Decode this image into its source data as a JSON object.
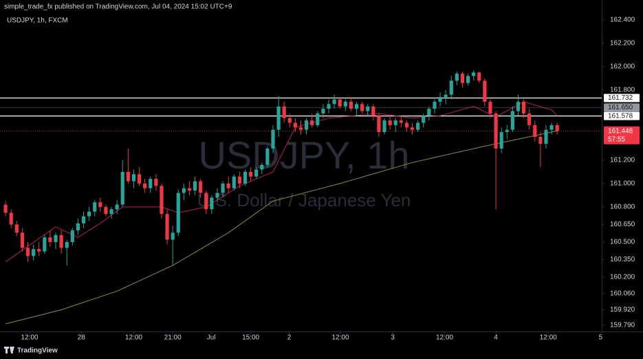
{
  "header": {
    "publisher": "simple_trade_fx published on TradingView.com, Jul 04, 2024 15:02 UTC+9",
    "footer": "TradingView"
  },
  "chart_data": {
    "type": "candlestick",
    "title": "USDJPY, 1h, FXCM",
    "watermark": "USDJPY, 1h",
    "watermark_subtitle": "U.S. Dollar / Japanese Yen",
    "up_color": "#26a69a",
    "down_color": "#f23645",
    "ylim": [
      159.735,
      162.57
    ],
    "xlim": [
      -1,
      107
    ],
    "yticks": [
      {
        "value": 162.4,
        "label": "162.400"
      },
      {
        "value": 162.2,
        "label": "162.200"
      },
      {
        "value": 162.0,
        "label": "162.000"
      },
      {
        "value": 161.8,
        "label": "161.800"
      },
      {
        "value": 161.2,
        "label": "161.200"
      },
      {
        "value": 161.0,
        "label": "161.000"
      },
      {
        "value": 160.8,
        "label": "160.800"
      },
      {
        "value": 160.65,
        "label": "160.650"
      },
      {
        "value": 160.5,
        "label": "160.500"
      },
      {
        "value": 160.35,
        "label": "160.350"
      },
      {
        "value": 160.2,
        "label": "160.200"
      },
      {
        "value": 160.06,
        "label": "160.060"
      },
      {
        "value": 159.92,
        "label": "159.920"
      },
      {
        "value": 159.79,
        "label": "159.790"
      }
    ],
    "xticks": [
      {
        "value": 4.3,
        "label": "12:00"
      },
      {
        "value": 13.6,
        "label": "28"
      },
      {
        "value": 23,
        "label": "12:00"
      },
      {
        "value": 30,
        "label": "21:00"
      },
      {
        "value": 36.9,
        "label": "Jul"
      },
      {
        "value": 44,
        "label": "15:00"
      },
      {
        "value": 50.9,
        "label": "2"
      },
      {
        "value": 60.1,
        "label": "12:00"
      },
      {
        "value": 69.5,
        "label": "3"
      },
      {
        "value": 78.8,
        "label": "12:00"
      },
      {
        "value": 88,
        "label": "4"
      },
      {
        "value": 97.4,
        "label": "12:00"
      },
      {
        "value": 106.8,
        "label": "5"
      }
    ],
    "levels": [
      {
        "value": 161.732,
        "label": "161.732",
        "color": "#ffffff"
      },
      {
        "value": 161.65,
        "label": "161.650",
        "color": "#9598a1"
      },
      {
        "value": 161.578,
        "label": "161.578",
        "color": "#ffffff"
      }
    ],
    "last_price": {
      "value": 161.448,
      "label": "161.448",
      "countdown": "57:55"
    },
    "moving_averages": [
      {
        "color": "#c2185b",
        "x": [
          0,
          9,
          13,
          17,
          21,
          28,
          31,
          36,
          42,
          48,
          52,
          58,
          67,
          73,
          78,
          84,
          88,
          93,
          98,
          99
        ],
        "values": [
          160.33,
          160.63,
          160.54,
          160.66,
          160.8,
          160.8,
          160.75,
          160.8,
          160.98,
          161.1,
          161.48,
          161.56,
          161.6,
          161.56,
          161.58,
          161.66,
          161.57,
          161.7,
          161.63,
          161.58
        ]
      },
      {
        "color": "#8d8d3a",
        "x": [
          0,
          10,
          20,
          30,
          40,
          48,
          60,
          73,
          86,
          99
        ],
        "values": [
          159.8,
          159.92,
          160.08,
          160.3,
          160.58,
          160.85,
          161.0,
          161.18,
          161.32,
          161.45
        ]
      }
    ],
    "candles": [
      [
        160.82,
        160.85,
        160.72,
        160.75
      ],
      [
        160.75,
        160.78,
        160.62,
        160.65
      ],
      [
        160.65,
        160.68,
        160.55,
        160.58
      ],
      [
        160.58,
        160.62,
        160.42,
        160.45
      ],
      [
        160.45,
        160.5,
        160.33,
        160.38
      ],
      [
        160.38,
        160.48,
        160.34,
        160.44
      ],
      [
        160.44,
        160.5,
        160.38,
        160.42
      ],
      [
        160.42,
        160.56,
        160.4,
        160.54
      ],
      [
        160.54,
        160.6,
        160.46,
        160.5
      ],
      [
        160.5,
        160.58,
        160.44,
        160.56
      ],
      [
        160.56,
        160.6,
        160.4,
        160.45
      ],
      [
        160.45,
        160.52,
        160.3,
        160.5
      ],
      [
        160.5,
        160.62,
        160.47,
        160.6
      ],
      [
        160.6,
        160.7,
        160.56,
        160.66
      ],
      [
        160.66,
        160.76,
        160.62,
        160.72
      ],
      [
        160.72,
        160.8,
        160.68,
        160.76
      ],
      [
        160.76,
        160.86,
        160.72,
        160.84
      ],
      [
        160.84,
        160.88,
        160.76,
        160.8
      ],
      [
        160.8,
        160.82,
        160.72,
        160.74
      ],
      [
        160.74,
        160.8,
        160.7,
        160.78
      ],
      [
        160.78,
        160.86,
        160.74,
        160.82
      ],
      [
        160.82,
        161.2,
        160.8,
        161.1
      ],
      [
        161.1,
        161.3,
        161.0,
        161.02
      ],
      [
        161.02,
        161.12,
        160.96,
        161.08
      ],
      [
        161.08,
        161.14,
        160.98,
        161.0
      ],
      [
        161.0,
        161.04,
        160.92,
        160.96
      ],
      [
        160.96,
        161.06,
        160.92,
        161.04
      ],
      [
        161.04,
        161.08,
        160.94,
        160.98
      ],
      [
        160.98,
        161.0,
        160.7,
        160.74
      ],
      [
        160.74,
        160.78,
        160.48,
        160.52
      ],
      [
        160.52,
        160.64,
        160.3,
        160.58
      ],
      [
        160.58,
        160.95,
        160.55,
        160.92
      ],
      [
        160.92,
        161.0,
        160.86,
        160.96
      ],
      [
        160.96,
        161.02,
        160.9,
        160.94
      ],
      [
        160.94,
        161.06,
        160.9,
        161.02
      ],
      [
        161.02,
        161.04,
        160.88,
        160.92
      ],
      [
        160.92,
        160.94,
        160.74,
        160.78
      ],
      [
        160.78,
        160.9,
        160.74,
        160.88
      ],
      [
        160.88,
        160.96,
        160.84,
        160.92
      ],
      [
        160.92,
        161.02,
        160.88,
        161.0
      ],
      [
        161.0,
        161.06,
        160.92,
        160.96
      ],
      [
        160.96,
        161.08,
        160.94,
        161.06
      ],
      [
        161.06,
        161.1,
        160.96,
        161.0
      ],
      [
        161.0,
        161.12,
        160.98,
        161.1
      ],
      [
        161.1,
        161.14,
        161.02,
        161.06
      ],
      [
        161.06,
        161.14,
        161.04,
        161.12
      ],
      [
        161.12,
        161.18,
        161.08,
        161.16
      ],
      [
        161.16,
        161.32,
        161.14,
        161.3
      ],
      [
        161.3,
        161.5,
        161.26,
        161.46
      ],
      [
        161.46,
        161.75,
        161.4,
        161.66
      ],
      [
        161.66,
        161.7,
        161.52,
        161.56
      ],
      [
        161.56,
        161.6,
        161.48,
        161.52
      ],
      [
        161.52,
        161.56,
        161.44,
        161.48
      ],
      [
        161.48,
        161.54,
        161.42,
        161.46
      ],
      [
        161.46,
        161.56,
        161.42,
        161.54
      ],
      [
        161.54,
        161.6,
        161.48,
        161.5
      ],
      [
        161.5,
        161.62,
        161.48,
        161.6
      ],
      [
        161.6,
        161.68,
        161.56,
        161.64
      ],
      [
        161.64,
        161.72,
        161.6,
        161.68
      ],
      [
        161.68,
        161.76,
        161.64,
        161.72
      ],
      [
        161.72,
        161.74,
        161.64,
        161.66
      ],
      [
        161.66,
        161.72,
        161.62,
        161.7
      ],
      [
        161.7,
        161.74,
        161.62,
        161.64
      ],
      [
        161.64,
        161.7,
        161.58,
        161.68
      ],
      [
        161.68,
        161.7,
        161.6,
        161.62
      ],
      [
        161.62,
        161.68,
        161.58,
        161.66
      ],
      [
        161.66,
        161.68,
        161.54,
        161.58
      ],
      [
        161.58,
        161.6,
        161.4,
        161.44
      ],
      [
        161.44,
        161.56,
        161.42,
        161.54
      ],
      [
        161.54,
        161.58,
        161.46,
        161.5
      ],
      [
        161.5,
        161.56,
        161.44,
        161.54
      ],
      [
        161.54,
        161.58,
        161.48,
        161.52
      ],
      [
        161.52,
        161.54,
        161.44,
        161.48
      ],
      [
        161.48,
        161.52,
        161.42,
        161.46
      ],
      [
        161.46,
        161.54,
        161.44,
        161.52
      ],
      [
        161.52,
        161.6,
        161.48,
        161.58
      ],
      [
        161.58,
        161.66,
        161.54,
        161.64
      ],
      [
        161.64,
        161.72,
        161.6,
        161.7
      ],
      [
        161.7,
        161.78,
        161.66,
        161.74
      ],
      [
        161.74,
        161.8,
        161.68,
        161.76
      ],
      [
        161.76,
        161.92,
        161.72,
        161.88
      ],
      [
        161.88,
        161.96,
        161.84,
        161.94
      ],
      [
        161.94,
        161.96,
        161.82,
        161.86
      ],
      [
        161.86,
        161.94,
        161.84,
        161.92
      ],
      [
        161.92,
        161.97,
        161.88,
        161.95
      ],
      [
        161.95,
        161.96,
        161.86,
        161.88
      ],
      [
        161.88,
        161.9,
        161.66,
        161.7
      ],
      [
        161.7,
        161.72,
        161.56,
        161.6
      ],
      [
        161.6,
        161.62,
        160.78,
        161.3
      ],
      [
        161.3,
        161.48,
        161.26,
        161.44
      ],
      [
        161.44,
        161.5,
        161.38,
        161.46
      ],
      [
        161.46,
        161.66,
        161.44,
        161.62
      ],
      [
        161.62,
        161.76,
        161.58,
        161.7
      ],
      [
        161.7,
        161.72,
        161.56,
        161.6
      ],
      [
        161.6,
        161.64,
        161.46,
        161.5
      ],
      [
        161.5,
        161.54,
        161.36,
        161.4
      ],
      [
        161.4,
        161.44,
        161.14,
        161.34
      ],
      [
        161.34,
        161.5,
        161.3,
        161.46
      ],
      [
        161.46,
        161.52,
        161.42,
        161.5
      ],
      [
        161.5,
        161.52,
        161.42,
        161.448
      ]
    ]
  }
}
